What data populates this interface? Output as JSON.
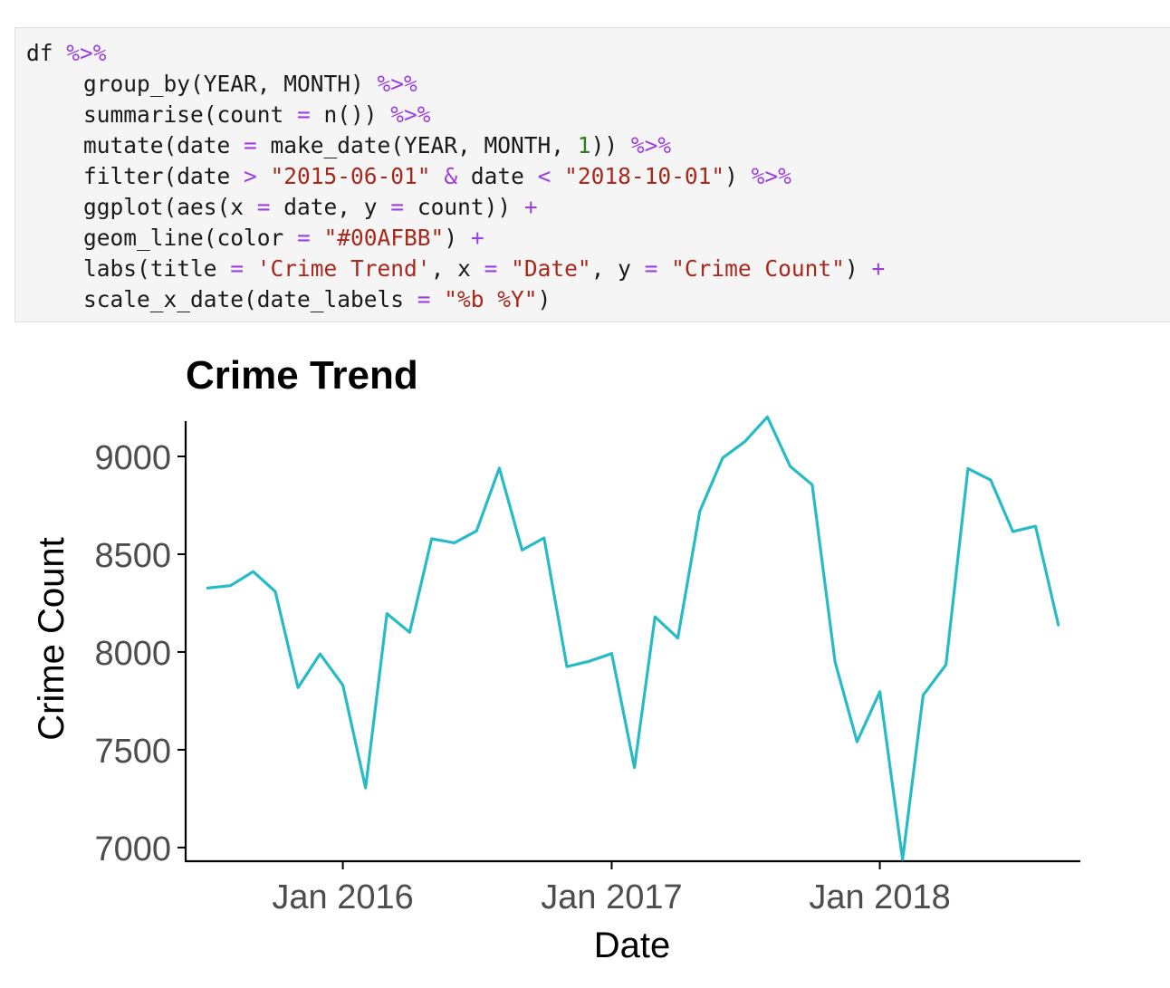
{
  "code_cell": {
    "lines": [
      {
        "indent": false,
        "tokens": [
          {
            "t": "df ",
            "k": "plain"
          },
          {
            "t": "%>%",
            "k": "op"
          }
        ]
      },
      {
        "indent": true,
        "tokens": [
          {
            "t": "group_by(YEAR, MONTH) ",
            "k": "plain"
          },
          {
            "t": "%>%",
            "k": "op"
          }
        ]
      },
      {
        "indent": true,
        "tokens": [
          {
            "t": "summarise(count ",
            "k": "plain"
          },
          {
            "t": "=",
            "k": "op"
          },
          {
            "t": " n()) ",
            "k": "plain"
          },
          {
            "t": "%>%",
            "k": "op"
          }
        ]
      },
      {
        "indent": true,
        "tokens": [
          {
            "t": "mutate(date ",
            "k": "plain"
          },
          {
            "t": "=",
            "k": "op"
          },
          {
            "t": " make_date(YEAR, MONTH, ",
            "k": "plain"
          },
          {
            "t": "1",
            "k": "num"
          },
          {
            "t": ")) ",
            "k": "plain"
          },
          {
            "t": "%>%",
            "k": "op"
          }
        ]
      },
      {
        "indent": true,
        "tokens": [
          {
            "t": "filter(date ",
            "k": "plain"
          },
          {
            "t": ">",
            "k": "op"
          },
          {
            "t": " ",
            "k": "plain"
          },
          {
            "t": "\"2015-06-01\"",
            "k": "str"
          },
          {
            "t": " ",
            "k": "plain"
          },
          {
            "t": "&",
            "k": "op"
          },
          {
            "t": " date ",
            "k": "plain"
          },
          {
            "t": "<",
            "k": "op"
          },
          {
            "t": " ",
            "k": "plain"
          },
          {
            "t": "\"2018-10-01\"",
            "k": "str"
          },
          {
            "t": ") ",
            "k": "plain"
          },
          {
            "t": "%>%",
            "k": "op"
          }
        ]
      },
      {
        "indent": true,
        "tokens": [
          {
            "t": "ggplot(aes(x ",
            "k": "plain"
          },
          {
            "t": "=",
            "k": "op"
          },
          {
            "t": " date, y ",
            "k": "plain"
          },
          {
            "t": "=",
            "k": "op"
          },
          {
            "t": " count)) ",
            "k": "plain"
          },
          {
            "t": "+",
            "k": "op"
          }
        ]
      },
      {
        "indent": true,
        "tokens": [
          {
            "t": "geom_line(color ",
            "k": "plain"
          },
          {
            "t": "=",
            "k": "op"
          },
          {
            "t": " ",
            "k": "plain"
          },
          {
            "t": "\"#00AFBB\"",
            "k": "str"
          },
          {
            "t": ") ",
            "k": "plain"
          },
          {
            "t": "+",
            "k": "op"
          }
        ]
      },
      {
        "indent": true,
        "tokens": [
          {
            "t": "labs(title ",
            "k": "plain"
          },
          {
            "t": "=",
            "k": "op"
          },
          {
            "t": " ",
            "k": "plain"
          },
          {
            "t": "'Crime Trend'",
            "k": "str"
          },
          {
            "t": ", x ",
            "k": "plain"
          },
          {
            "t": "=",
            "k": "op"
          },
          {
            "t": " ",
            "k": "plain"
          },
          {
            "t": "\"Date\"",
            "k": "str"
          },
          {
            "t": ", y ",
            "k": "plain"
          },
          {
            "t": "=",
            "k": "op"
          },
          {
            "t": " ",
            "k": "plain"
          },
          {
            "t": "\"Crime Count\"",
            "k": "str"
          },
          {
            "t": ") ",
            "k": "plain"
          },
          {
            "t": "+",
            "k": "op"
          }
        ]
      },
      {
        "indent": true,
        "tokens": [
          {
            "t": "scale_x_date(date_labels ",
            "k": "plain"
          },
          {
            "t": "=",
            "k": "op"
          },
          {
            "t": " ",
            "k": "plain"
          },
          {
            "t": "\"%b %Y\"",
            "k": "str"
          },
          {
            "t": ")",
            "k": "plain"
          }
        ]
      }
    ]
  },
  "chart_data": {
    "type": "line",
    "title": "Crime Trend",
    "xlabel": "Date",
    "ylabel": "Crime Count",
    "line_color": "#00AFBB",
    "grid": false,
    "legend": "none",
    "x_range": [
      "2015-06-01",
      "2018-10-01"
    ],
    "ylim": [
      6930,
      9250
    ],
    "x_ticks": [
      {
        "date": "2016-01-01",
        "label": "Jan 2016"
      },
      {
        "date": "2017-01-01",
        "label": "Jan 2017"
      },
      {
        "date": "2018-01-01",
        "label": "Jan 2018"
      }
    ],
    "y_ticks": [
      {
        "value": 7000,
        "label": "7000"
      },
      {
        "value": 7500,
        "label": "7500"
      },
      {
        "value": 8000,
        "label": "8000"
      },
      {
        "value": 8500,
        "label": "8500"
      },
      {
        "value": 9000,
        "label": "9000"
      }
    ],
    "x": [
      "2015-07-01",
      "2015-08-01",
      "2015-09-01",
      "2015-10-01",
      "2015-11-01",
      "2015-12-01",
      "2016-01-01",
      "2016-02-01",
      "2016-03-01",
      "2016-04-01",
      "2016-05-01",
      "2016-06-01",
      "2016-07-01",
      "2016-08-01",
      "2016-09-01",
      "2016-10-01",
      "2016-11-01",
      "2016-12-01",
      "2017-01-01",
      "2017-02-01",
      "2017-03-01",
      "2017-04-01",
      "2017-05-01",
      "2017-06-01",
      "2017-07-01",
      "2017-08-01",
      "2017-09-01",
      "2017-10-01",
      "2017-11-01",
      "2017-12-01",
      "2018-01-01",
      "2018-02-01",
      "2018-03-01",
      "2018-04-01",
      "2018-05-01",
      "2018-06-01",
      "2018-07-01",
      "2018-08-01",
      "2018-09-01"
    ],
    "values": [
      8327,
      8339,
      8411,
      8309,
      7818,
      7990,
      7830,
      7305,
      8196,
      8100,
      8579,
      8558,
      8619,
      8940,
      8521,
      8583,
      7925,
      7952,
      7992,
      7409,
      8180,
      8071,
      8720,
      8992,
      9075,
      9202,
      8949,
      8855,
      7950,
      7541,
      7797,
      6938,
      7779,
      7935,
      8938,
      8879,
      8616,
      8643,
      8138
    ]
  }
}
